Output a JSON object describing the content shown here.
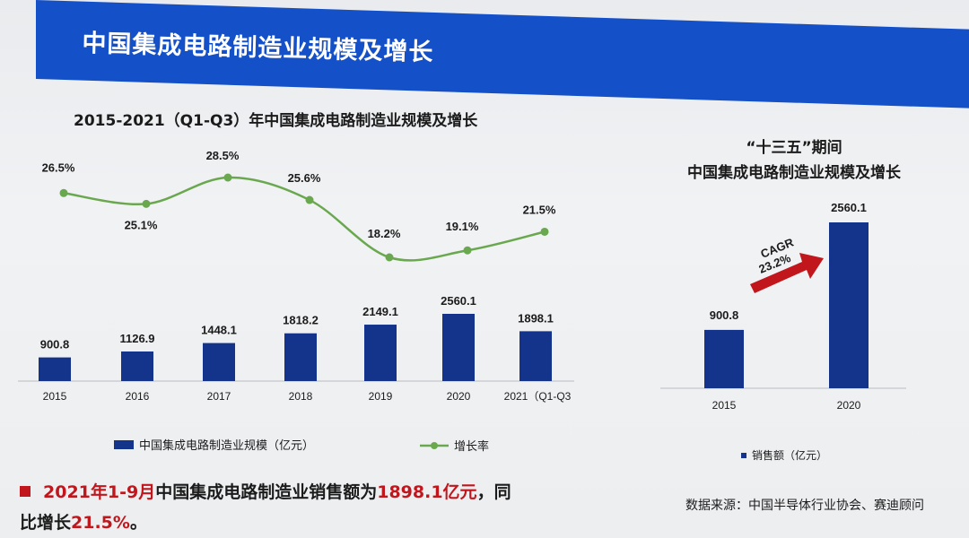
{
  "slide": {
    "title": "中国集成电路制造业规模及增长",
    "source": "数据来源：中国半导体行业协会、赛迪顾问"
  },
  "note": {
    "part1": "2021年1-9月",
    "part2": "中国集成电路制造业销售额为",
    "part3": "1898.1亿元",
    "part4": "，同",
    "line2_part1": "比增长",
    "line2_part2": "21.5%",
    "line2_part3": "。"
  },
  "colors": {
    "bar": "#14338a",
    "line": "#6aa84f",
    "banner": "#1450c8",
    "arrow": "#c0161c",
    "highlight": "#c0161c"
  },
  "chart_data": [
    {
      "type": "bar",
      "title": "2015-2021（Q1-Q3）年中国集成电路制造业规模及增长",
      "categories": [
        "2015",
        "2016",
        "2017",
        "2018",
        "2019",
        "2020",
        "2021（Q1-Q3"
      ],
      "series": [
        {
          "name": "中国集成电路制造业规模（亿元）",
          "type": "bar",
          "values": [
            900.8,
            1126.9,
            1448.1,
            1818.2,
            2149.1,
            2560.1,
            1898.1
          ],
          "labels": [
            "900.8",
            "1126.9",
            "1448.1",
            "1818.2",
            "2149.1",
            "2560.1",
            "1898.1"
          ]
        },
        {
          "name": "增长率",
          "type": "line",
          "values": [
            26.5,
            25.1,
            28.5,
            25.6,
            18.2,
            19.1,
            21.5
          ],
          "labels": [
            "26.5%",
            "25.1%",
            "28.5%",
            "25.6%",
            "18.2%",
            "19.1%",
            "21.5%"
          ]
        }
      ],
      "legend": "bottom",
      "grid": false
    },
    {
      "type": "bar",
      "title_line1": "“十三五”期间",
      "title_line2": "中国集成电路制造业规模及增长",
      "categories": [
        "2015",
        "2020"
      ],
      "series": [
        {
          "name": "销售额（亿元）",
          "values": [
            900.8,
            2560.1
          ],
          "labels": [
            "900.8",
            "2560.1"
          ]
        }
      ],
      "annotation": {
        "line1": "CAGR",
        "line2": "23.2%"
      },
      "legend": "bottom",
      "grid": false
    }
  ]
}
